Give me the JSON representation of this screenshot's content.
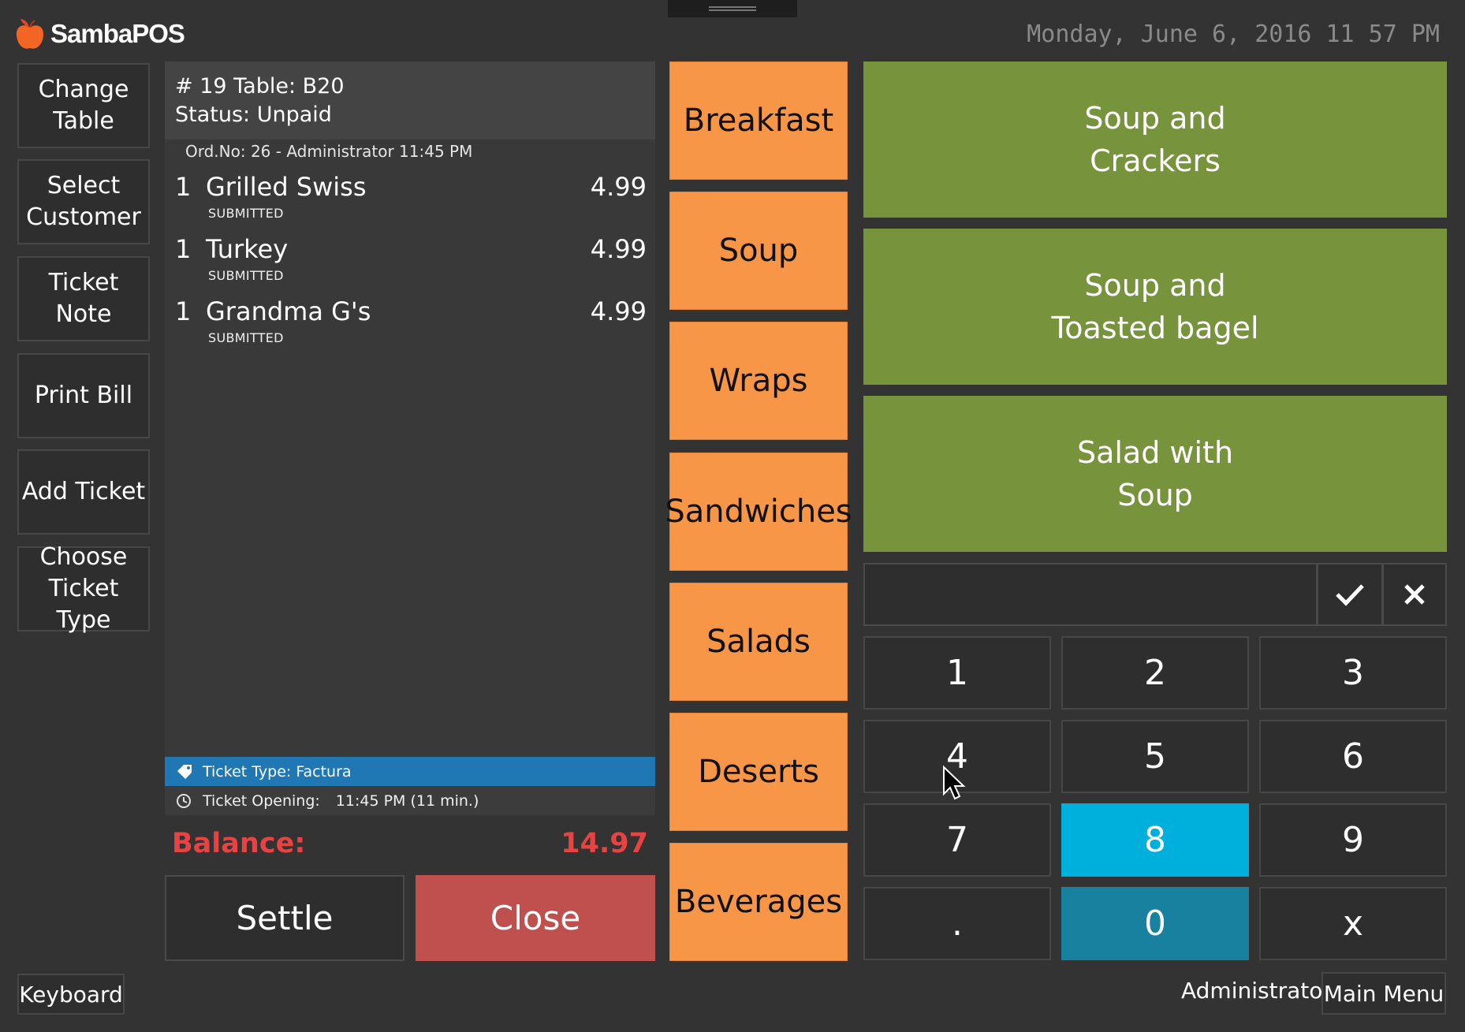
{
  "app": {
    "name": "SambaPOS",
    "datetime": "Monday, June 6, 2016 11 57 PM"
  },
  "actions": [
    "Change Table",
    "Select Customer",
    "Ticket Note",
    "Print Bill",
    "Add Ticket",
    "Choose Ticket Type"
  ],
  "ticket": {
    "header_line1": "# 19 Table: B20",
    "header_line2": "Status: Unpaid",
    "order_line": "Ord.No: 26 - Administrator  11:45 PM",
    "items": [
      {
        "qty": "1",
        "name": "Grilled Swiss",
        "price": "4.99",
        "status": "SUBMITTED"
      },
      {
        "qty": "1",
        "name": "Turkey",
        "price": "4.99",
        "status": "SUBMITTED"
      },
      {
        "qty": "1",
        "name": "Grandma G's",
        "price": "4.99",
        "status": "SUBMITTED"
      }
    ],
    "ticket_type": "Ticket Type: Factura",
    "opening_label": "Ticket Opening:",
    "opening_value": "11:45 PM (11 min.)",
    "balance_label": "Balance:",
    "balance_value": "14.97",
    "settle_label": "Settle",
    "close_label": "Close"
  },
  "categories": [
    "Breakfast",
    "Soup",
    "Wraps",
    "Sandwiches",
    "Salads",
    "Deserts",
    "Beverages"
  ],
  "products": [
    {
      "line1": "Soup and",
      "line2": "Crackers"
    },
    {
      "line1": "Soup and",
      "line2": "Toasted bagel"
    },
    {
      "line1": "Salad with",
      "line2": "Soup"
    }
  ],
  "numpad": {
    "input_value": "",
    "keys": [
      "1",
      "2",
      "3",
      "4",
      "5",
      "6",
      "7",
      "8",
      "9",
      ".",
      "0",
      "x"
    ]
  },
  "footer": {
    "keyboard_label": "Keyboard",
    "user": "Administrator",
    "main_menu_label": "Main Menu"
  },
  "colors": {
    "category": "#f79646",
    "product": "#77933c",
    "close": "#c0504d",
    "balance": "#e84343",
    "ticket_type_bar": "#1f78b4",
    "numpad_highlight": "#00b0dc"
  }
}
